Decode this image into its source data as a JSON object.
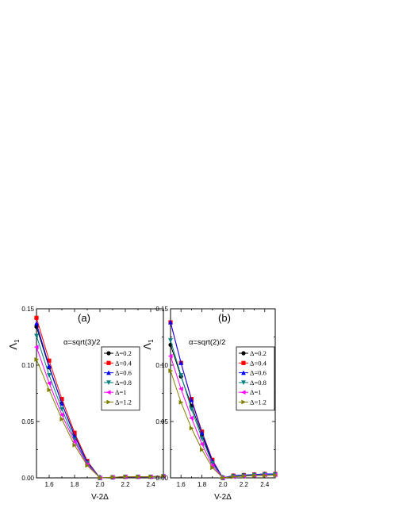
{
  "chart_data": [
    {
      "type": "line",
      "panel_label": "(a)",
      "annotation": "α=sqrt(3)/2",
      "xlabel": "V-2Δ",
      "ylabel_main": "Λ",
      "ylabel_sub": "1",
      "xlim": [
        1.5,
        2.5
      ],
      "ylim": [
        0,
        0.15
      ],
      "xticks": [
        "1.6",
        "1.8",
        "2.0",
        "2.2",
        "2.4"
      ],
      "yticks": [
        "0.00",
        "0.05",
        "0.10",
        "0.15"
      ],
      "legend_position": "right",
      "x": [
        1.5,
        1.6,
        1.7,
        1.8,
        1.9,
        2.0,
        2.1,
        2.2,
        2.3,
        2.4,
        2.5
      ],
      "series": [
        {
          "name": "Δ=0.2",
          "color": "#000000",
          "marker": "circle",
          "values": [
            0.134,
            0.098,
            0.066,
            0.038,
            0.014,
            0.0,
            0.0005,
            0.001,
            0.001,
            0.001,
            0.0015
          ]
        },
        {
          "name": "Δ=0.4",
          "color": "#ff0000",
          "marker": "square",
          "values": [
            0.142,
            0.104,
            0.07,
            0.04,
            0.015,
            0.0,
            0.0005,
            0.001,
            0.001,
            0.001,
            0.0015
          ]
        },
        {
          "name": "Δ=0.6",
          "color": "#0000ff",
          "marker": "triangle-up",
          "values": [
            0.137,
            0.099,
            0.066,
            0.037,
            0.014,
            0.0,
            0.0005,
            0.001,
            0.001,
            0.001,
            0.0015
          ]
        },
        {
          "name": "Δ=0.8",
          "color": "#008080",
          "marker": "triangle-down",
          "values": [
            0.126,
            0.091,
            0.061,
            0.034,
            0.013,
            0.0,
            0.0005,
            0.001,
            0.001,
            0.001,
            0.0015
          ]
        },
        {
          "name": "Δ=1",
          "color": "#ff00ff",
          "marker": "triangle-left",
          "values": [
            0.116,
            0.084,
            0.056,
            0.032,
            0.012,
            0.0,
            0.0005,
            0.001,
            0.001,
            0.001,
            0.0015
          ]
        },
        {
          "name": "Δ=1.2",
          "color": "#808000",
          "marker": "triangle-right",
          "values": [
            0.105,
            0.078,
            0.052,
            0.029,
            0.011,
            0.0,
            0.0005,
            0.001,
            0.001,
            0.001,
            0.0015
          ]
        }
      ]
    },
    {
      "type": "line",
      "panel_label": "(b)",
      "annotation": "α=sqrt(2)/2",
      "xlabel": "V-2Δ",
      "ylabel_main": "Λ",
      "ylabel_sub": "1",
      "xlim": [
        1.5,
        2.5
      ],
      "ylim": [
        0,
        0.15
      ],
      "xticks": [
        "1.6",
        "1.8",
        "2.0",
        "2.2",
        "2.4"
      ],
      "yticks": [
        "0.00",
        "0.05",
        "0.10",
        "0.15"
      ],
      "legend_position": "right",
      "x": [
        1.5,
        1.6,
        1.7,
        1.8,
        1.9,
        2.0,
        2.1,
        2.2,
        2.3,
        2.4,
        2.5
      ],
      "series": [
        {
          "name": "Δ=0.2",
          "color": "#000000",
          "marker": "circle",
          "values": [
            0.118,
            0.09,
            0.064,
            0.038,
            0.014,
            0.0,
            0.0015,
            0.002,
            0.0025,
            0.003,
            0.003
          ]
        },
        {
          "name": "Δ=0.4",
          "color": "#ff0000",
          "marker": "square",
          "values": [
            0.138,
            0.102,
            0.07,
            0.041,
            0.016,
            0.0,
            0.002,
            0.0025,
            0.003,
            0.0035,
            0.0035
          ]
        },
        {
          "name": "Δ=0.6",
          "color": "#0000ff",
          "marker": "triangle-up",
          "values": [
            0.138,
            0.102,
            0.069,
            0.04,
            0.015,
            0.0,
            0.002,
            0.0025,
            0.003,
            0.0035,
            0.0035
          ]
        },
        {
          "name": "Δ=0.8",
          "color": "#008080",
          "marker": "triangle-down",
          "values": [
            0.122,
            0.091,
            0.061,
            0.035,
            0.013,
            0.0,
            0.0015,
            0.002,
            0.0025,
            0.003,
            0.003
          ]
        },
        {
          "name": "Δ=1",
          "color": "#ff00ff",
          "marker": "triangle-left",
          "values": [
            0.108,
            0.079,
            0.053,
            0.03,
            0.011,
            0.0,
            0.001,
            0.0015,
            0.002,
            0.0025,
            0.0025
          ]
        },
        {
          "name": "Δ=1.2",
          "color": "#808000",
          "marker": "triangle-right",
          "values": [
            0.095,
            0.067,
            0.044,
            0.025,
            0.009,
            0.0,
            0.001,
            0.0015,
            0.002,
            0.002,
            0.0025
          ]
        }
      ]
    }
  ]
}
